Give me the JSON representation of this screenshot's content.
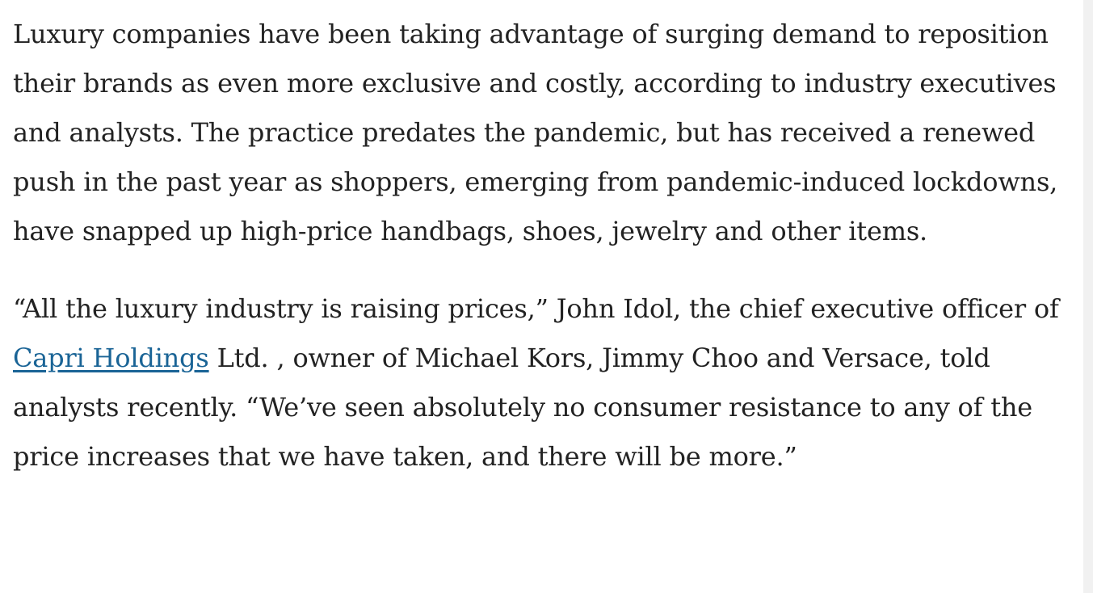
{
  "article": {
    "paragraphs": [
      {
        "text": "Luxury companies have been taking advantage of surging demand to reposition their brands as even more exclusive and costly, according to industry executives and analysts. The practice predates the pandemic, but has received a renewed push in the past year as shoppers, emerging from pandemic-induced lockdowns, have snapped up high-price handbags, shoes, jewelry and other items."
      },
      {
        "before": "“All the luxury industry is raising prices,” John Idol, the chief executive officer of ",
        "link": "Capri Holdings",
        "after": " Ltd. , owner of Michael Kors, Jimmy Choo and Versace, told analysts recently. “We’ve seen absolutely no consumer resistance to any of the price increases that we have taken, and there will be more.”"
      }
    ]
  }
}
